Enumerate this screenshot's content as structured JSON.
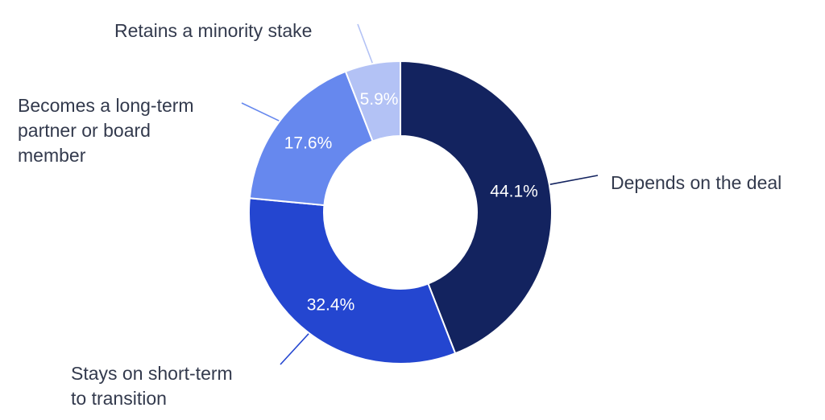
{
  "chart_data": {
    "type": "pie",
    "subtype": "donut",
    "categories": [
      "Depends on the deal",
      "Stays on short-term to transition",
      "Becomes a long-term partner or board member",
      "Retains a minority stake"
    ],
    "values": [
      44.1,
      32.4,
      17.6,
      5.9
    ],
    "value_labels": [
      "44.1%",
      "32.4%",
      "17.6%",
      "5.9%"
    ],
    "label_lines": [
      [
        "Depends on the deal"
      ],
      [
        "Stays on short-term",
        "to transition"
      ],
      [
        "Becomes a long-term",
        "partner or board",
        "member"
      ],
      [
        "Retains a minority stake"
      ]
    ],
    "colors": [
      "#13235f",
      "#2446d0",
      "#6688ee",
      "#b3c2f5"
    ],
    "leader_colors": [
      "#13235f",
      "#2446d0",
      "#6688ee",
      "#b3c2f5"
    ],
    "start_angle": "12 o'clock",
    "direction": "clockwise",
    "legend": false
  }
}
